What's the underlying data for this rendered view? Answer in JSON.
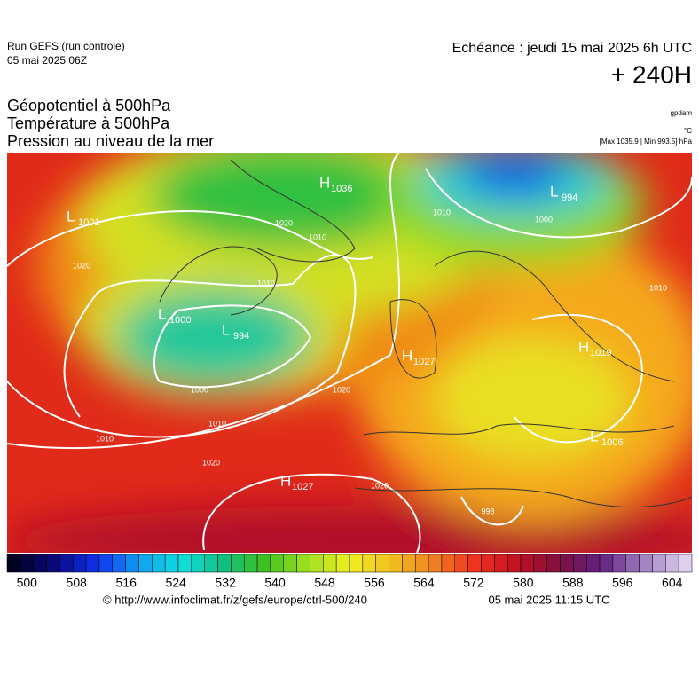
{
  "header": {
    "run": "Run GEFS (run controle)",
    "date": "05 mai 2025 06Z",
    "echeance": "Echéance : jeudi 15 mai 2025 6h UTC",
    "lead": "+ 240H"
  },
  "titles": [
    "Géopotentiel à 500hPa",
    "Température à 500hPa",
    "Pression au niveau de la mer"
  ],
  "units": [
    "gpdam",
    "°C",
    "[Max 1035.9 | Min 993.5] hPa"
  ],
  "pressure_centers": [
    {
      "kind": "H",
      "value": 1036
    },
    {
      "kind": "L",
      "value": 1001
    },
    {
      "kind": "L",
      "value": 994
    },
    {
      "kind": "L",
      "value": 1000
    },
    {
      "kind": "L",
      "value": 994
    },
    {
      "kind": "H",
      "value": 1027
    },
    {
      "kind": "H",
      "value": 1019
    },
    {
      "kind": "L",
      "value": 1006
    },
    {
      "kind": "H",
      "value": 1027
    }
  ],
  "isobar_labels": [
    1020,
    1020,
    1000,
    1010,
    1010,
    1010,
    1000,
    1020,
    1010,
    1010,
    1020,
    1020,
    998,
    1010
  ],
  "colorbar": {
    "ticks": [
      500,
      508,
      516,
      524,
      532,
      540,
      548,
      556,
      564,
      572,
      580,
      588,
      596,
      604
    ]
  },
  "footer": {
    "url": "© http://www.infoclimat.fr/z/gefs/europe/ctrl-500/240",
    "time": "05 mai 2025 11:15 UTC"
  }
}
